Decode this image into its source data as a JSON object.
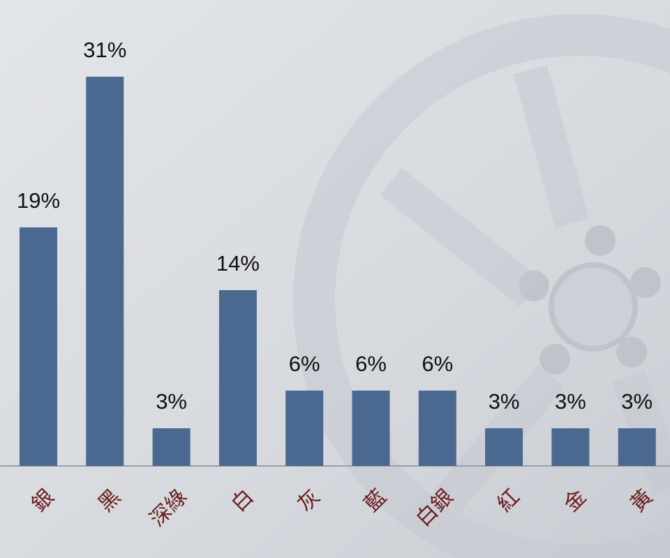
{
  "chart_data": {
    "type": "bar",
    "categories": [
      "銀",
      "黑",
      "深綠",
      "白",
      "灰",
      "藍",
      "白銀",
      "紅",
      "金",
      "黃"
    ],
    "values": [
      19,
      31,
      3,
      14,
      6,
      6,
      6,
      3,
      3,
      3
    ],
    "value_labels": [
      "19%",
      "31%",
      "3%",
      "14%",
      "6%",
      "6%",
      "6%",
      "3%",
      "3%",
      "3%"
    ],
    "color": "#4a6890"
  }
}
